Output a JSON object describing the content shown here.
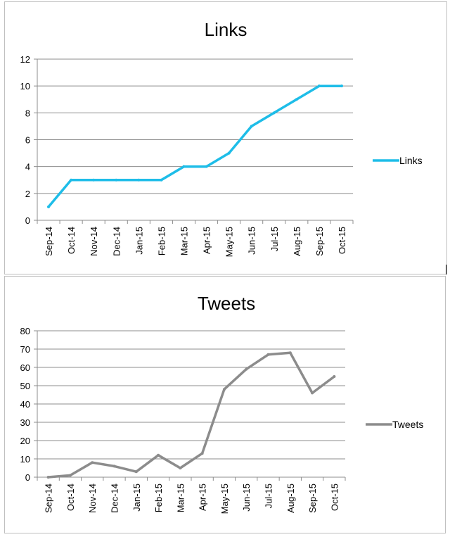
{
  "chart_data": [
    {
      "type": "line",
      "title": "Links",
      "categories": [
        "Sep-14",
        "Oct-14",
        "Nov-14",
        "Dec-14",
        "Jan-15",
        "Feb-15",
        "Mar-15",
        "Apr-15",
        "May-15",
        "Jun-15",
        "Jul-15",
        "Aug-15",
        "Sep-15",
        "Oct-15"
      ],
      "series": [
        {
          "name": "Links",
          "color": "#1ebde8",
          "values": [
            1,
            3,
            3,
            3,
            3,
            3,
            4,
            4,
            5,
            7,
            8,
            9,
            10,
            10
          ]
        }
      ],
      "yticks": [
        "0",
        "2",
        "4",
        "6",
        "8",
        "10",
        "12"
      ],
      "ylim": [
        0,
        12
      ],
      "grid": true,
      "legend": "right"
    },
    {
      "type": "line",
      "title": "Tweets",
      "categories": [
        "Sep-14",
        "Oct-14",
        "Nov-14",
        "Dec-14",
        "Jan-15",
        "Feb-15",
        "Mar-15",
        "Apr-15",
        "May-15",
        "Jun-15",
        "Jul-15",
        "Aug-15",
        "Sep-15",
        "Oct-15"
      ],
      "series": [
        {
          "name": "Tweets",
          "color": "#8c8c8c",
          "values": [
            0,
            1,
            8,
            6,
            3,
            12,
            5,
            13,
            48,
            59,
            67,
            68,
            46,
            55
          ]
        }
      ],
      "yticks": [
        "0",
        "10",
        "20",
        "30",
        "40",
        "50",
        "60",
        "70",
        "80"
      ],
      "ylim": [
        0,
        80
      ],
      "grid": true,
      "legend": "right"
    }
  ]
}
